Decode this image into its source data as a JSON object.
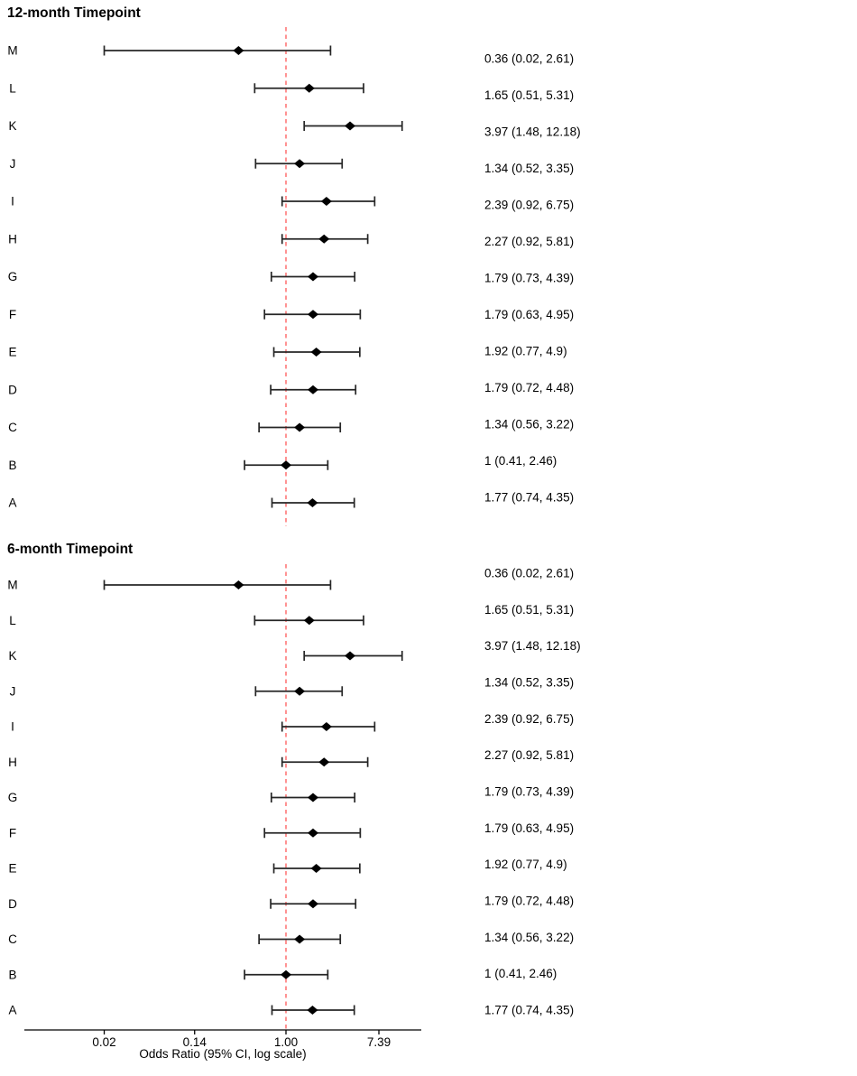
{
  "figure": {
    "background": "#ffffff"
  },
  "chart_data": {
    "type": "scatter",
    "subtype": "forest-plot",
    "orientation": "horizontal",
    "xscale": "log",
    "grid": false,
    "legend": false,
    "xlabel": "Odds Ratio (95% CI, log scale)",
    "xlim": [
      0.004,
      18.4
    ],
    "xticks": [
      {
        "value": 0.02,
        "label": "0.02"
      },
      {
        "value": 0.14,
        "label": "0.14"
      },
      {
        "value": 1.0,
        "label": "1.00"
      },
      {
        "value": 7.39,
        "label": "7.39"
      }
    ],
    "reference_line": {
      "value": 1.0,
      "style": "dashed",
      "color": "#ff8080"
    },
    "marker": {
      "shape": "diamond",
      "color": "#000000"
    },
    "ci_line_color": "#262626",
    "panels": [
      {
        "title": "12-month Timepoint",
        "rows": [
          {
            "label": "M",
            "or": 0.36,
            "lo": 0.02,
            "hi": 2.61,
            "text": "0.36 (0.02, 2.61)"
          },
          {
            "label": "L",
            "or": 1.65,
            "lo": 0.51,
            "hi": 5.31,
            "text": "1.65 (0.51, 5.31)"
          },
          {
            "label": "K",
            "or": 3.97,
            "lo": 1.48,
            "hi": 12.18,
            "text": "3.97 (1.48, 12.18)"
          },
          {
            "label": "J",
            "or": 1.34,
            "lo": 0.52,
            "hi": 3.35,
            "text": "1.34 (0.52, 3.35)"
          },
          {
            "label": "I",
            "or": 2.39,
            "lo": 0.92,
            "hi": 6.75,
            "text": "2.39 (0.92, 6.75)"
          },
          {
            "label": "H",
            "or": 2.27,
            "lo": 0.92,
            "hi": 5.81,
            "text": "2.27 (0.92, 5.81)"
          },
          {
            "label": "G",
            "or": 1.79,
            "lo": 0.73,
            "hi": 4.39,
            "text": "1.79 (0.73, 4.39)"
          },
          {
            "label": "F",
            "or": 1.79,
            "lo": 0.63,
            "hi": 4.95,
            "text": "1.79 (0.63, 4.95)"
          },
          {
            "label": "E",
            "or": 1.92,
            "lo": 0.77,
            "hi": 4.9,
            "text": "1.92 (0.77, 4.9)"
          },
          {
            "label": "D",
            "or": 1.79,
            "lo": 0.72,
            "hi": 4.48,
            "text": "1.79 (0.72, 4.48)"
          },
          {
            "label": "C",
            "or": 1.34,
            "lo": 0.56,
            "hi": 3.22,
            "text": "1.34 (0.56, 3.22)"
          },
          {
            "label": "B",
            "or": 1.0,
            "lo": 0.41,
            "hi": 2.46,
            "text": "1 (0.41, 2.46)"
          },
          {
            "label": "A",
            "or": 1.77,
            "lo": 0.74,
            "hi": 4.35,
            "text": "1.77 (0.74, 4.35)"
          }
        ]
      },
      {
        "title": "6-month Timepoint",
        "rows": [
          {
            "label": "M",
            "or": 0.36,
            "lo": 0.02,
            "hi": 2.61,
            "text": "0.36 (0.02, 2.61)"
          },
          {
            "label": "L",
            "or": 1.65,
            "lo": 0.51,
            "hi": 5.31,
            "text": "1.65 (0.51, 5.31)"
          },
          {
            "label": "K",
            "or": 3.97,
            "lo": 1.48,
            "hi": 12.18,
            "text": "3.97 (1.48, 12.18)"
          },
          {
            "label": "J",
            "or": 1.34,
            "lo": 0.52,
            "hi": 3.35,
            "text": "1.34 (0.52, 3.35)"
          },
          {
            "label": "I",
            "or": 2.39,
            "lo": 0.92,
            "hi": 6.75,
            "text": "2.39 (0.92, 6.75)"
          },
          {
            "label": "H",
            "or": 2.27,
            "lo": 0.92,
            "hi": 5.81,
            "text": "2.27 (0.92, 5.81)"
          },
          {
            "label": "G",
            "or": 1.79,
            "lo": 0.73,
            "hi": 4.39,
            "text": "1.79 (0.73, 4.39)"
          },
          {
            "label": "F",
            "or": 1.79,
            "lo": 0.63,
            "hi": 4.95,
            "text": "1.79 (0.63, 4.95)"
          },
          {
            "label": "E",
            "or": 1.92,
            "lo": 0.77,
            "hi": 4.9,
            "text": "1.92 (0.77, 4.9)"
          },
          {
            "label": "D",
            "or": 1.79,
            "lo": 0.72,
            "hi": 4.48,
            "text": "1.79 (0.72, 4.48)"
          },
          {
            "label": "C",
            "or": 1.34,
            "lo": 0.56,
            "hi": 3.22,
            "text": "1.34 (0.56, 3.22)"
          },
          {
            "label": "B",
            "or": 1.0,
            "lo": 0.41,
            "hi": 2.46,
            "text": "1 (0.41, 2.46)"
          },
          {
            "label": "A",
            "or": 1.77,
            "lo": 0.74,
            "hi": 4.35,
            "text": "1.77 (0.74, 4.35)"
          }
        ]
      }
    ]
  }
}
